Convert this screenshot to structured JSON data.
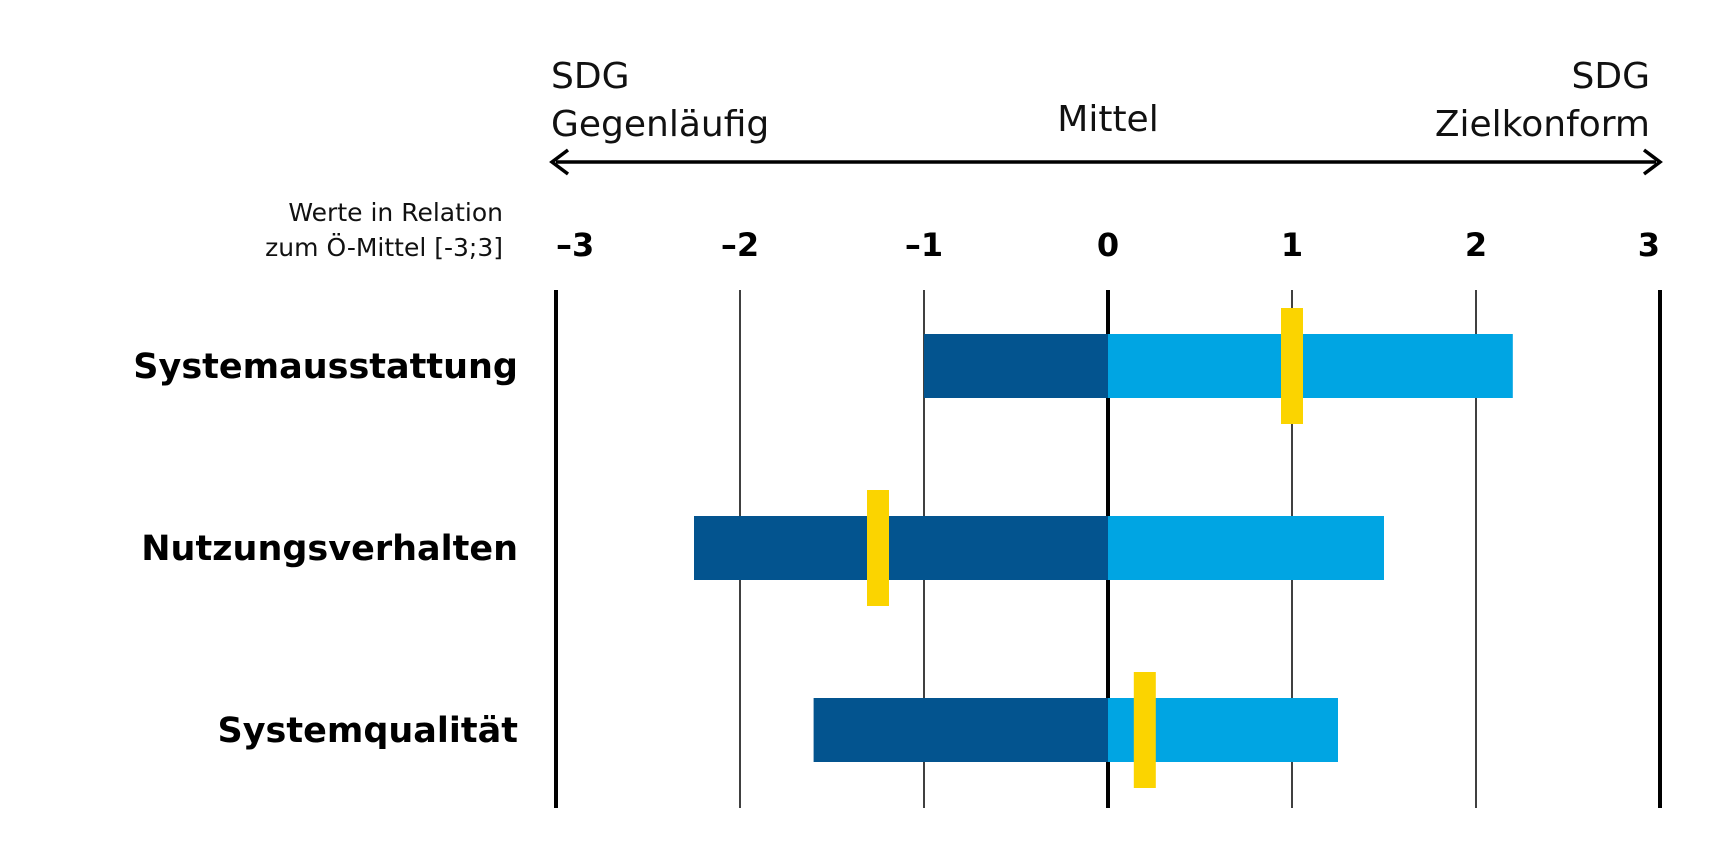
{
  "header": {
    "left_line1": "SDG",
    "left_line2": "Gegenläufig",
    "center": "Mittel",
    "right_line1": "SDG",
    "right_line2": "Zielkonform"
  },
  "axis_note": {
    "line1": "Werte in Relation",
    "line2": "zum Ö-Mittel [-3;3]"
  },
  "colors": {
    "negative": "#03548f",
    "positive": "#00a5e3",
    "marker": "#fbd400",
    "line": "#000000"
  },
  "chart_data": {
    "type": "bar",
    "orientation": "horizontal",
    "xlim": [
      -3,
      3
    ],
    "xticks": [
      "-3",
      "-2",
      "-1",
      "0",
      "1",
      "2",
      "3"
    ],
    "grid": true,
    "categories": [
      "Systemausstattung",
      "Nutzungsverhalten",
      "Systemqualität"
    ],
    "series": [
      {
        "values": [
          -1.0,
          -2.25,
          -1.6
        ]
      },
      {
        "values": [
          2.2,
          1.5,
          1.25
        ]
      },
      {
        "values": [
          1.0,
          -1.25,
          0.2
        ]
      }
    ]
  }
}
